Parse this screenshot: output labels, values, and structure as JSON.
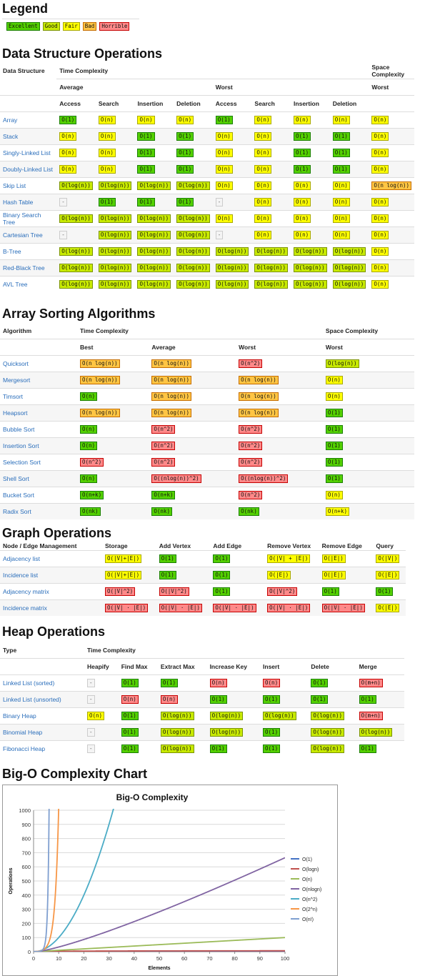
{
  "legend": {
    "title": "Legend",
    "items": [
      {
        "label": "Excellent",
        "cls": "g"
      },
      {
        "label": "Good",
        "cls": "y2"
      },
      {
        "label": "Fair",
        "cls": "y"
      },
      {
        "label": "Bad",
        "cls": "o"
      },
      {
        "label": "Horrible",
        "cls": "r"
      }
    ]
  },
  "ds": {
    "title": "Data Structure Operations",
    "h_structure": "Data Structure",
    "h_time": "Time Complexity",
    "h_space": "Space Complexity",
    "h_average": "Average",
    "h_worst": "Worst",
    "h_worst_space": "Worst",
    "ops": [
      "Access",
      "Search",
      "Insertion",
      "Deletion",
      "Access",
      "Search",
      "Insertion",
      "Deletion"
    ],
    "rows": [
      {
        "name": "Array",
        "cells": [
          [
            "O(1)",
            "g"
          ],
          [
            "O(n)",
            "y"
          ],
          [
            "O(n)",
            "y"
          ],
          [
            "O(n)",
            "y"
          ],
          [
            "O(1)",
            "g"
          ],
          [
            "O(n)",
            "y"
          ],
          [
            "O(n)",
            "y"
          ],
          [
            "O(n)",
            "y"
          ],
          [
            "O(n)",
            "y"
          ]
        ]
      },
      {
        "name": "Stack",
        "cells": [
          [
            "O(n)",
            "y"
          ],
          [
            "O(n)",
            "y"
          ],
          [
            "O(1)",
            "g"
          ],
          [
            "O(1)",
            "g"
          ],
          [
            "O(n)",
            "y"
          ],
          [
            "O(n)",
            "y"
          ],
          [
            "O(1)",
            "g"
          ],
          [
            "O(1)",
            "g"
          ],
          [
            "O(n)",
            "y"
          ]
        ]
      },
      {
        "name": "Singly-Linked List",
        "cells": [
          [
            "O(n)",
            "y"
          ],
          [
            "O(n)",
            "y"
          ],
          [
            "O(1)",
            "g"
          ],
          [
            "O(1)",
            "g"
          ],
          [
            "O(n)",
            "y"
          ],
          [
            "O(n)",
            "y"
          ],
          [
            "O(1)",
            "g"
          ],
          [
            "O(1)",
            "g"
          ],
          [
            "O(n)",
            "y"
          ]
        ]
      },
      {
        "name": "Doubly-Linked List",
        "cells": [
          [
            "O(n)",
            "y"
          ],
          [
            "O(n)",
            "y"
          ],
          [
            "O(1)",
            "g"
          ],
          [
            "O(1)",
            "g"
          ],
          [
            "O(n)",
            "y"
          ],
          [
            "O(n)",
            "y"
          ],
          [
            "O(1)",
            "g"
          ],
          [
            "O(1)",
            "g"
          ],
          [
            "O(n)",
            "y"
          ]
        ]
      },
      {
        "name": "Skip List",
        "cells": [
          [
            "O(log(n))",
            "y2"
          ],
          [
            "O(log(n))",
            "y2"
          ],
          [
            "O(log(n))",
            "y2"
          ],
          [
            "O(log(n))",
            "y2"
          ],
          [
            "O(n)",
            "y"
          ],
          [
            "O(n)",
            "y"
          ],
          [
            "O(n)",
            "y"
          ],
          [
            "O(n)",
            "y"
          ],
          [
            "O(n log(n))",
            "o"
          ]
        ]
      },
      {
        "name": "Hash Table",
        "cells": [
          [
            "-",
            "dash"
          ],
          [
            "O(1)",
            "g"
          ],
          [
            "O(1)",
            "g"
          ],
          [
            "O(1)",
            "g"
          ],
          [
            "-",
            "dash"
          ],
          [
            "O(n)",
            "y"
          ],
          [
            "O(n)",
            "y"
          ],
          [
            "O(n)",
            "y"
          ],
          [
            "O(n)",
            "y"
          ]
        ]
      },
      {
        "name": "Binary Search Tree",
        "cells": [
          [
            "O(log(n))",
            "y2"
          ],
          [
            "O(log(n))",
            "y2"
          ],
          [
            "O(log(n))",
            "y2"
          ],
          [
            "O(log(n))",
            "y2"
          ],
          [
            "O(n)",
            "y"
          ],
          [
            "O(n)",
            "y"
          ],
          [
            "O(n)",
            "y"
          ],
          [
            "O(n)",
            "y"
          ],
          [
            "O(n)",
            "y"
          ]
        ]
      },
      {
        "name": "Cartesian Tree",
        "cells": [
          [
            "-",
            "dash"
          ],
          [
            "O(log(n))",
            "y2"
          ],
          [
            "O(log(n))",
            "y2"
          ],
          [
            "O(log(n))",
            "y2"
          ],
          [
            "-",
            "dash"
          ],
          [
            "O(n)",
            "y"
          ],
          [
            "O(n)",
            "y"
          ],
          [
            "O(n)",
            "y"
          ],
          [
            "O(n)",
            "y"
          ]
        ]
      },
      {
        "name": "B-Tree",
        "cells": [
          [
            "O(log(n))",
            "y2"
          ],
          [
            "O(log(n))",
            "y2"
          ],
          [
            "O(log(n))",
            "y2"
          ],
          [
            "O(log(n))",
            "y2"
          ],
          [
            "O(log(n))",
            "y2"
          ],
          [
            "O(log(n))",
            "y2"
          ],
          [
            "O(log(n))",
            "y2"
          ],
          [
            "O(log(n))",
            "y2"
          ],
          [
            "O(n)",
            "y"
          ]
        ]
      },
      {
        "name": "Red-Black Tree",
        "cells": [
          [
            "O(log(n))",
            "y2"
          ],
          [
            "O(log(n))",
            "y2"
          ],
          [
            "O(log(n))",
            "y2"
          ],
          [
            "O(log(n))",
            "y2"
          ],
          [
            "O(log(n))",
            "y2"
          ],
          [
            "O(log(n))",
            "y2"
          ],
          [
            "O(log(n))",
            "y2"
          ],
          [
            "O(log(n))",
            "y2"
          ],
          [
            "O(n)",
            "y"
          ]
        ]
      },
      {
        "name": "AVL Tree",
        "cells": [
          [
            "O(log(n))",
            "y2"
          ],
          [
            "O(log(n))",
            "y2"
          ],
          [
            "O(log(n))",
            "y2"
          ],
          [
            "O(log(n))",
            "y2"
          ],
          [
            "O(log(n))",
            "y2"
          ],
          [
            "O(log(n))",
            "y2"
          ],
          [
            "O(log(n))",
            "y2"
          ],
          [
            "O(log(n))",
            "y2"
          ],
          [
            "O(n)",
            "y"
          ]
        ]
      }
    ]
  },
  "sort": {
    "title": "Array Sorting Algorithms",
    "h_algorithm": "Algorithm",
    "h_time": "Time Complexity",
    "h_space": "Space Complexity",
    "h_best": "Best",
    "h_average": "Average",
    "h_worst": "Worst",
    "h_worst_space": "Worst",
    "rows": [
      {
        "name": "Quicksort",
        "cells": [
          [
            "O(n log(n))",
            "o"
          ],
          [
            "O(n log(n))",
            "o"
          ],
          [
            "O(n^2)",
            "r"
          ],
          [
            "O(log(n))",
            "y2"
          ]
        ]
      },
      {
        "name": "Mergesort",
        "cells": [
          [
            "O(n log(n))",
            "o"
          ],
          [
            "O(n log(n))",
            "o"
          ],
          [
            "O(n log(n))",
            "o"
          ],
          [
            "O(n)",
            "y"
          ]
        ]
      },
      {
        "name": "Timsort",
        "cells": [
          [
            "O(n)",
            "g"
          ],
          [
            "O(n log(n))",
            "o"
          ],
          [
            "O(n log(n))",
            "o"
          ],
          [
            "O(n)",
            "y"
          ]
        ]
      },
      {
        "name": "Heapsort",
        "cells": [
          [
            "O(n log(n))",
            "o"
          ],
          [
            "O(n log(n))",
            "o"
          ],
          [
            "O(n log(n))",
            "o"
          ],
          [
            "O(1)",
            "g"
          ]
        ]
      },
      {
        "name": "Bubble Sort",
        "cells": [
          [
            "O(n)",
            "g"
          ],
          [
            "O(n^2)",
            "r"
          ],
          [
            "O(n^2)",
            "r"
          ],
          [
            "O(1)",
            "g"
          ]
        ]
      },
      {
        "name": "Insertion Sort",
        "cells": [
          [
            "O(n)",
            "g"
          ],
          [
            "O(n^2)",
            "r"
          ],
          [
            "O(n^2)",
            "r"
          ],
          [
            "O(1)",
            "g"
          ]
        ]
      },
      {
        "name": "Selection Sort",
        "cells": [
          [
            "O(n^2)",
            "r"
          ],
          [
            "O(n^2)",
            "r"
          ],
          [
            "O(n^2)",
            "r"
          ],
          [
            "O(1)",
            "g"
          ]
        ]
      },
      {
        "name": "Shell Sort",
        "cells": [
          [
            "O(n)",
            "g"
          ],
          [
            "O((nlog(n))^2)",
            "r"
          ],
          [
            "O((nlog(n))^2)",
            "r"
          ],
          [
            "O(1)",
            "g"
          ]
        ]
      },
      {
        "name": "Bucket Sort",
        "cells": [
          [
            "O(n+k)",
            "g"
          ],
          [
            "O(n+k)",
            "g"
          ],
          [
            "O(n^2)",
            "r"
          ],
          [
            "O(n)",
            "y"
          ]
        ]
      },
      {
        "name": "Radix Sort",
        "cells": [
          [
            "O(nk)",
            "g"
          ],
          [
            "O(nk)",
            "g"
          ],
          [
            "O(nk)",
            "g"
          ],
          [
            "O(n+k)",
            "y"
          ]
        ]
      }
    ]
  },
  "graph": {
    "title": "Graph Operations",
    "headers": [
      "Node / Edge Management",
      "Storage",
      "Add Vertex",
      "Add Edge",
      "Remove Vertex",
      "Remove Edge",
      "Query"
    ],
    "rows": [
      {
        "name": "Adjacency list",
        "cells": [
          [
            "O(|V|+|E|)",
            "y"
          ],
          [
            "O(1)",
            "g"
          ],
          [
            "O(1)",
            "g"
          ],
          [
            "O(|V| + |E|)",
            "y"
          ],
          [
            "O(|E|)",
            "y"
          ],
          [
            "O(|V|)",
            "y"
          ]
        ]
      },
      {
        "name": "Incidence list",
        "cells": [
          [
            "O(|V|+|E|)",
            "y"
          ],
          [
            "O(1)",
            "g"
          ],
          [
            "O(1)",
            "g"
          ],
          [
            "O(|E|)",
            "y"
          ],
          [
            "O(|E|)",
            "y"
          ],
          [
            "O(|E|)",
            "y"
          ]
        ]
      },
      {
        "name": "Adjacency matrix",
        "cells": [
          [
            "O(|V|^2)",
            "r"
          ],
          [
            "O(|V|^2)",
            "r"
          ],
          [
            "O(1)",
            "g"
          ],
          [
            "O(|V|^2)",
            "r"
          ],
          [
            "O(1)",
            "g"
          ],
          [
            "O(1)",
            "g"
          ]
        ]
      },
      {
        "name": "Incidence matrix",
        "cells": [
          [
            "O(|V| ⋅ |E|)",
            "r"
          ],
          [
            "O(|V| ⋅ |E|)",
            "r"
          ],
          [
            "O(|V| ⋅ |E|)",
            "r"
          ],
          [
            "O(|V| ⋅ |E|)",
            "r"
          ],
          [
            "O(|V| ⋅ |E|)",
            "r"
          ],
          [
            "O(|E|)",
            "y"
          ]
        ]
      }
    ]
  },
  "heap": {
    "title": "Heap Operations",
    "h_type": "Type",
    "h_time": "Time Complexity",
    "ops": [
      "Heapify",
      "Find Max",
      "Extract Max",
      "Increase Key",
      "Insert",
      "Delete",
      "Merge"
    ],
    "rows": [
      {
        "name": "Linked List (sorted)",
        "cells": [
          [
            "-",
            "dash"
          ],
          [
            "O(1)",
            "g"
          ],
          [
            "O(1)",
            "g"
          ],
          [
            "O(n)",
            "r"
          ],
          [
            "O(n)",
            "r"
          ],
          [
            "O(1)",
            "g"
          ],
          [
            "O(m+n)",
            "r"
          ]
        ]
      },
      {
        "name": "Linked List (unsorted)",
        "cells": [
          [
            "-",
            "dash"
          ],
          [
            "O(n)",
            "r"
          ],
          [
            "O(n)",
            "r"
          ],
          [
            "O(1)",
            "g"
          ],
          [
            "O(1)",
            "g"
          ],
          [
            "O(1)",
            "g"
          ],
          [
            "O(1)",
            "g"
          ]
        ]
      },
      {
        "name": "Binary Heap",
        "cells": [
          [
            "O(n)",
            "y"
          ],
          [
            "O(1)",
            "g"
          ],
          [
            "O(log(n))",
            "y2"
          ],
          [
            "O(log(n))",
            "y2"
          ],
          [
            "O(log(n))",
            "y2"
          ],
          [
            "O(log(n))",
            "y2"
          ],
          [
            "O(m+n)",
            "r"
          ]
        ]
      },
      {
        "name": "Binomial Heap",
        "cells": [
          [
            "-",
            "dash"
          ],
          [
            "O(1)",
            "g"
          ],
          [
            "O(log(n))",
            "y2"
          ],
          [
            "O(log(n))",
            "y2"
          ],
          [
            "O(1)",
            "g"
          ],
          [
            "O(log(n))",
            "y2"
          ],
          [
            "O(log(n))",
            "y2"
          ]
        ]
      },
      {
        "name": "Fibonacci Heap",
        "cells": [
          [
            "-",
            "dash"
          ],
          [
            "O(1)",
            "g"
          ],
          [
            "O(log(n))",
            "y2"
          ],
          [
            "O(1)",
            "g"
          ],
          [
            "O(1)",
            "g"
          ],
          [
            "O(log(n))",
            "y2"
          ],
          [
            "O(1)",
            "g"
          ]
        ]
      }
    ]
  },
  "chart_section": {
    "title": "Big-O Complexity Chart"
  },
  "chart_data": {
    "type": "line",
    "title": "Big-O Complexity",
    "xlabel": "Elements",
    "ylabel": "Operations",
    "xlim": [
      0,
      100
    ],
    "ylim": [
      0,
      1000
    ],
    "xticks": [
      0,
      10,
      20,
      30,
      40,
      50,
      60,
      70,
      80,
      90,
      100
    ],
    "yticks": [
      0,
      100,
      200,
      300,
      400,
      500,
      600,
      700,
      800,
      900,
      1000
    ],
    "grid": true,
    "legend_position": "right",
    "series": [
      {
        "name": "O(1)",
        "color": "#4472c4",
        "fn": "1"
      },
      {
        "name": "O(logn)",
        "color": "#c0504d",
        "fn": "logn"
      },
      {
        "name": "O(n)",
        "color": "#9bbb59",
        "fn": "n"
      },
      {
        "name": "O(nlogn)",
        "color": "#8064a2",
        "fn": "nlogn"
      },
      {
        "name": "O(n^2)",
        "color": "#4bacc6",
        "fn": "n2"
      },
      {
        "name": "O(2^n)",
        "color": "#f79646",
        "fn": "2n"
      },
      {
        "name": "O(n!)",
        "color": "#7f9fd0",
        "fn": "fact"
      }
    ]
  }
}
